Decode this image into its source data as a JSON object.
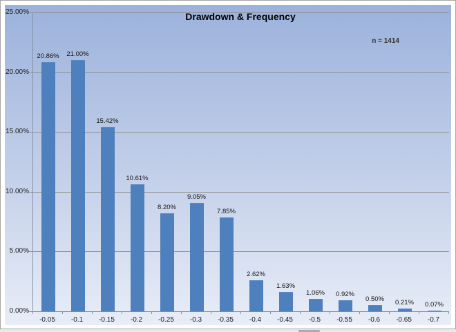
{
  "chart": {
    "annotation": "n = 1414",
    "colors": {
      "bar": "#4D80BC",
      "background_top": "#9CB2DC",
      "background_bottom": "#E8EDF7",
      "gridline": "#8F8F8F",
      "axis": "#8291A8",
      "title_text": "#000000"
    }
  },
  "chart_data": {
    "type": "bar",
    "title": "Drawdown & Frequency",
    "annotation": "n = 1414",
    "categories": [
      "-0.05",
      "-0.1",
      "-0.15",
      "-0.2",
      "-0.25",
      "-0.3",
      "-0.35",
      "-0.4",
      "-0.45",
      "-0.5",
      "-0.55",
      "-0.6",
      "-0.65",
      "-0.7"
    ],
    "values": [
      20.86,
      21.0,
      15.42,
      10.61,
      8.2,
      9.05,
      7.85,
      2.62,
      1.63,
      1.06,
      0.92,
      0.5,
      0.21,
      0.07
    ],
    "value_labels": [
      "20.86%",
      "21.00%",
      "15.42%",
      "10.61%",
      "8.20%",
      "9.05%",
      "7.85%",
      "2.62%",
      "1.63%",
      "1.06%",
      "0.92%",
      "0.50%",
      "0.21%",
      "0.07%"
    ],
    "xlabel": "",
    "ylabel": "",
    "ylim": [
      0,
      25
    ],
    "yticks": [
      "25.00%",
      "20.00%",
      "15.00%",
      "10.00%",
      "5.00%",
      "0.00%"
    ],
    "grid": true,
    "legend": false,
    "n": 1414
  }
}
